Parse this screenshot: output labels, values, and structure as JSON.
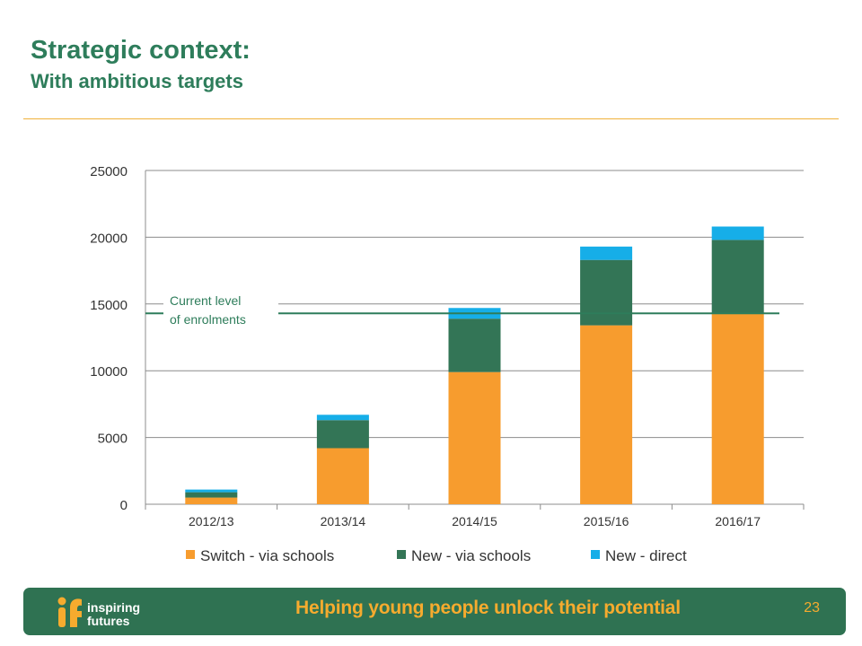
{
  "slide": {
    "title": "Strategic context:",
    "subtitle": "With ambitious targets",
    "page_number": "23"
  },
  "footer": {
    "logo_line1": "inspiring",
    "logo_line2": "futures",
    "tagline": "Helping young people unlock their potential"
  },
  "colors": {
    "accent_green": "#2e7d5b",
    "accent_orange": "#f6ab2e",
    "switch_via_schools": "#f79c2e",
    "new_via_schools": "#337556",
    "new_direct": "#16aee8"
  },
  "chart_data": {
    "type": "bar",
    "stacked": true,
    "categories": [
      "2012/13",
      "2013/14",
      "2014/15",
      "2015/16",
      "2016/17"
    ],
    "series": [
      {
        "name": "Switch - via schools",
        "color": "#f79c2e",
        "values": [
          500,
          4200,
          9900,
          13400,
          14300
        ]
      },
      {
        "name": "New - via schools",
        "color": "#337556",
        "values": [
          400,
          2100,
          4000,
          4900,
          5500
        ]
      },
      {
        "name": "New - direct",
        "color": "#16aee8",
        "values": [
          200,
          400,
          800,
          1000,
          1000
        ]
      }
    ],
    "ylim": [
      0,
      25000
    ],
    "yticks": [
      "0",
      "5000",
      "10000",
      "15000",
      "20000",
      "25000"
    ],
    "grid": true,
    "legend": "bottom",
    "reference_line": {
      "value": 14300,
      "label_line1": "Current level",
      "label_line2": "of enrolments"
    }
  }
}
